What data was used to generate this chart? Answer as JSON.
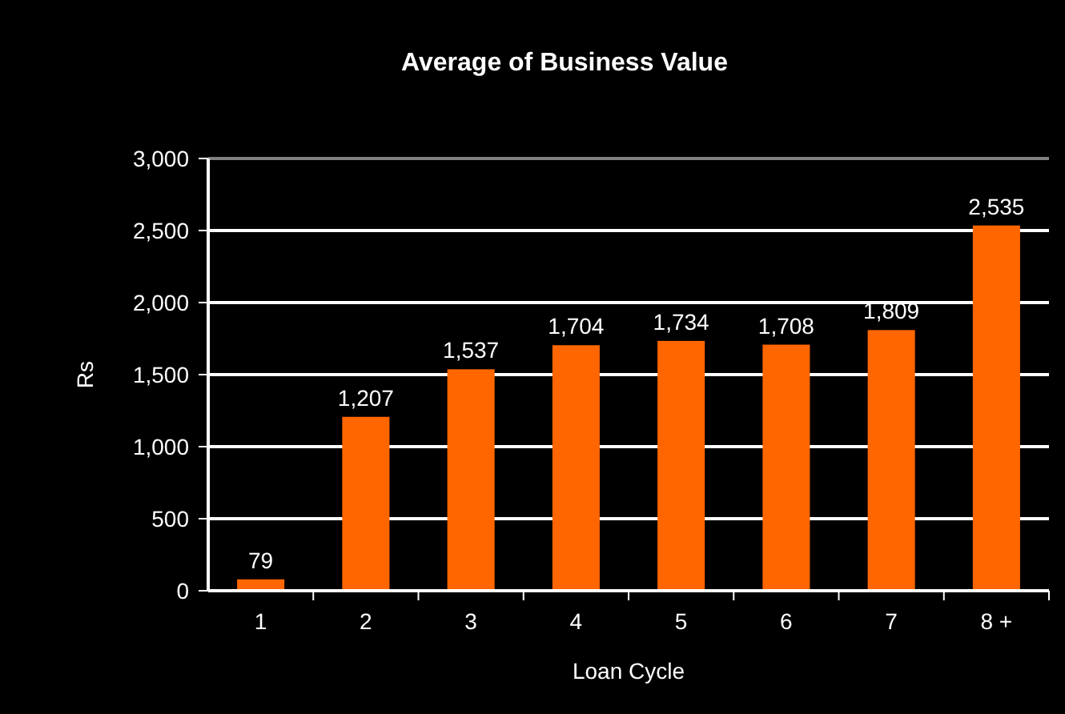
{
  "chart_data": {
    "type": "bar",
    "title": "Average of Business Value",
    "xlabel": "Loan Cycle",
    "ylabel": "Rs",
    "categories": [
      "1",
      "2",
      "3",
      "4",
      "5",
      "6",
      "7",
      "8 +"
    ],
    "values": [
      79,
      1207,
      1537,
      1704,
      1734,
      1708,
      1809,
      2535
    ],
    "value_labels": [
      "79",
      "1,207",
      "1,537",
      "1,704",
      "1,734",
      "1,708",
      "1,809",
      "2,535"
    ],
    "color": "#ff6600",
    "ylim": [
      0,
      3000
    ],
    "yticks": [
      0,
      {
        "value": 500,
        "label": "500"
      },
      {
        "value": 1000,
        "label": "1,000"
      },
      {
        "value": 1500,
        "label": "1,500"
      },
      {
        "value": 2000,
        "label": "2,000"
      },
      {
        "value": 2500,
        "label": "2,500"
      },
      {
        "value": 3000,
        "label": "3,000"
      }
    ],
    "grid": "y"
  }
}
